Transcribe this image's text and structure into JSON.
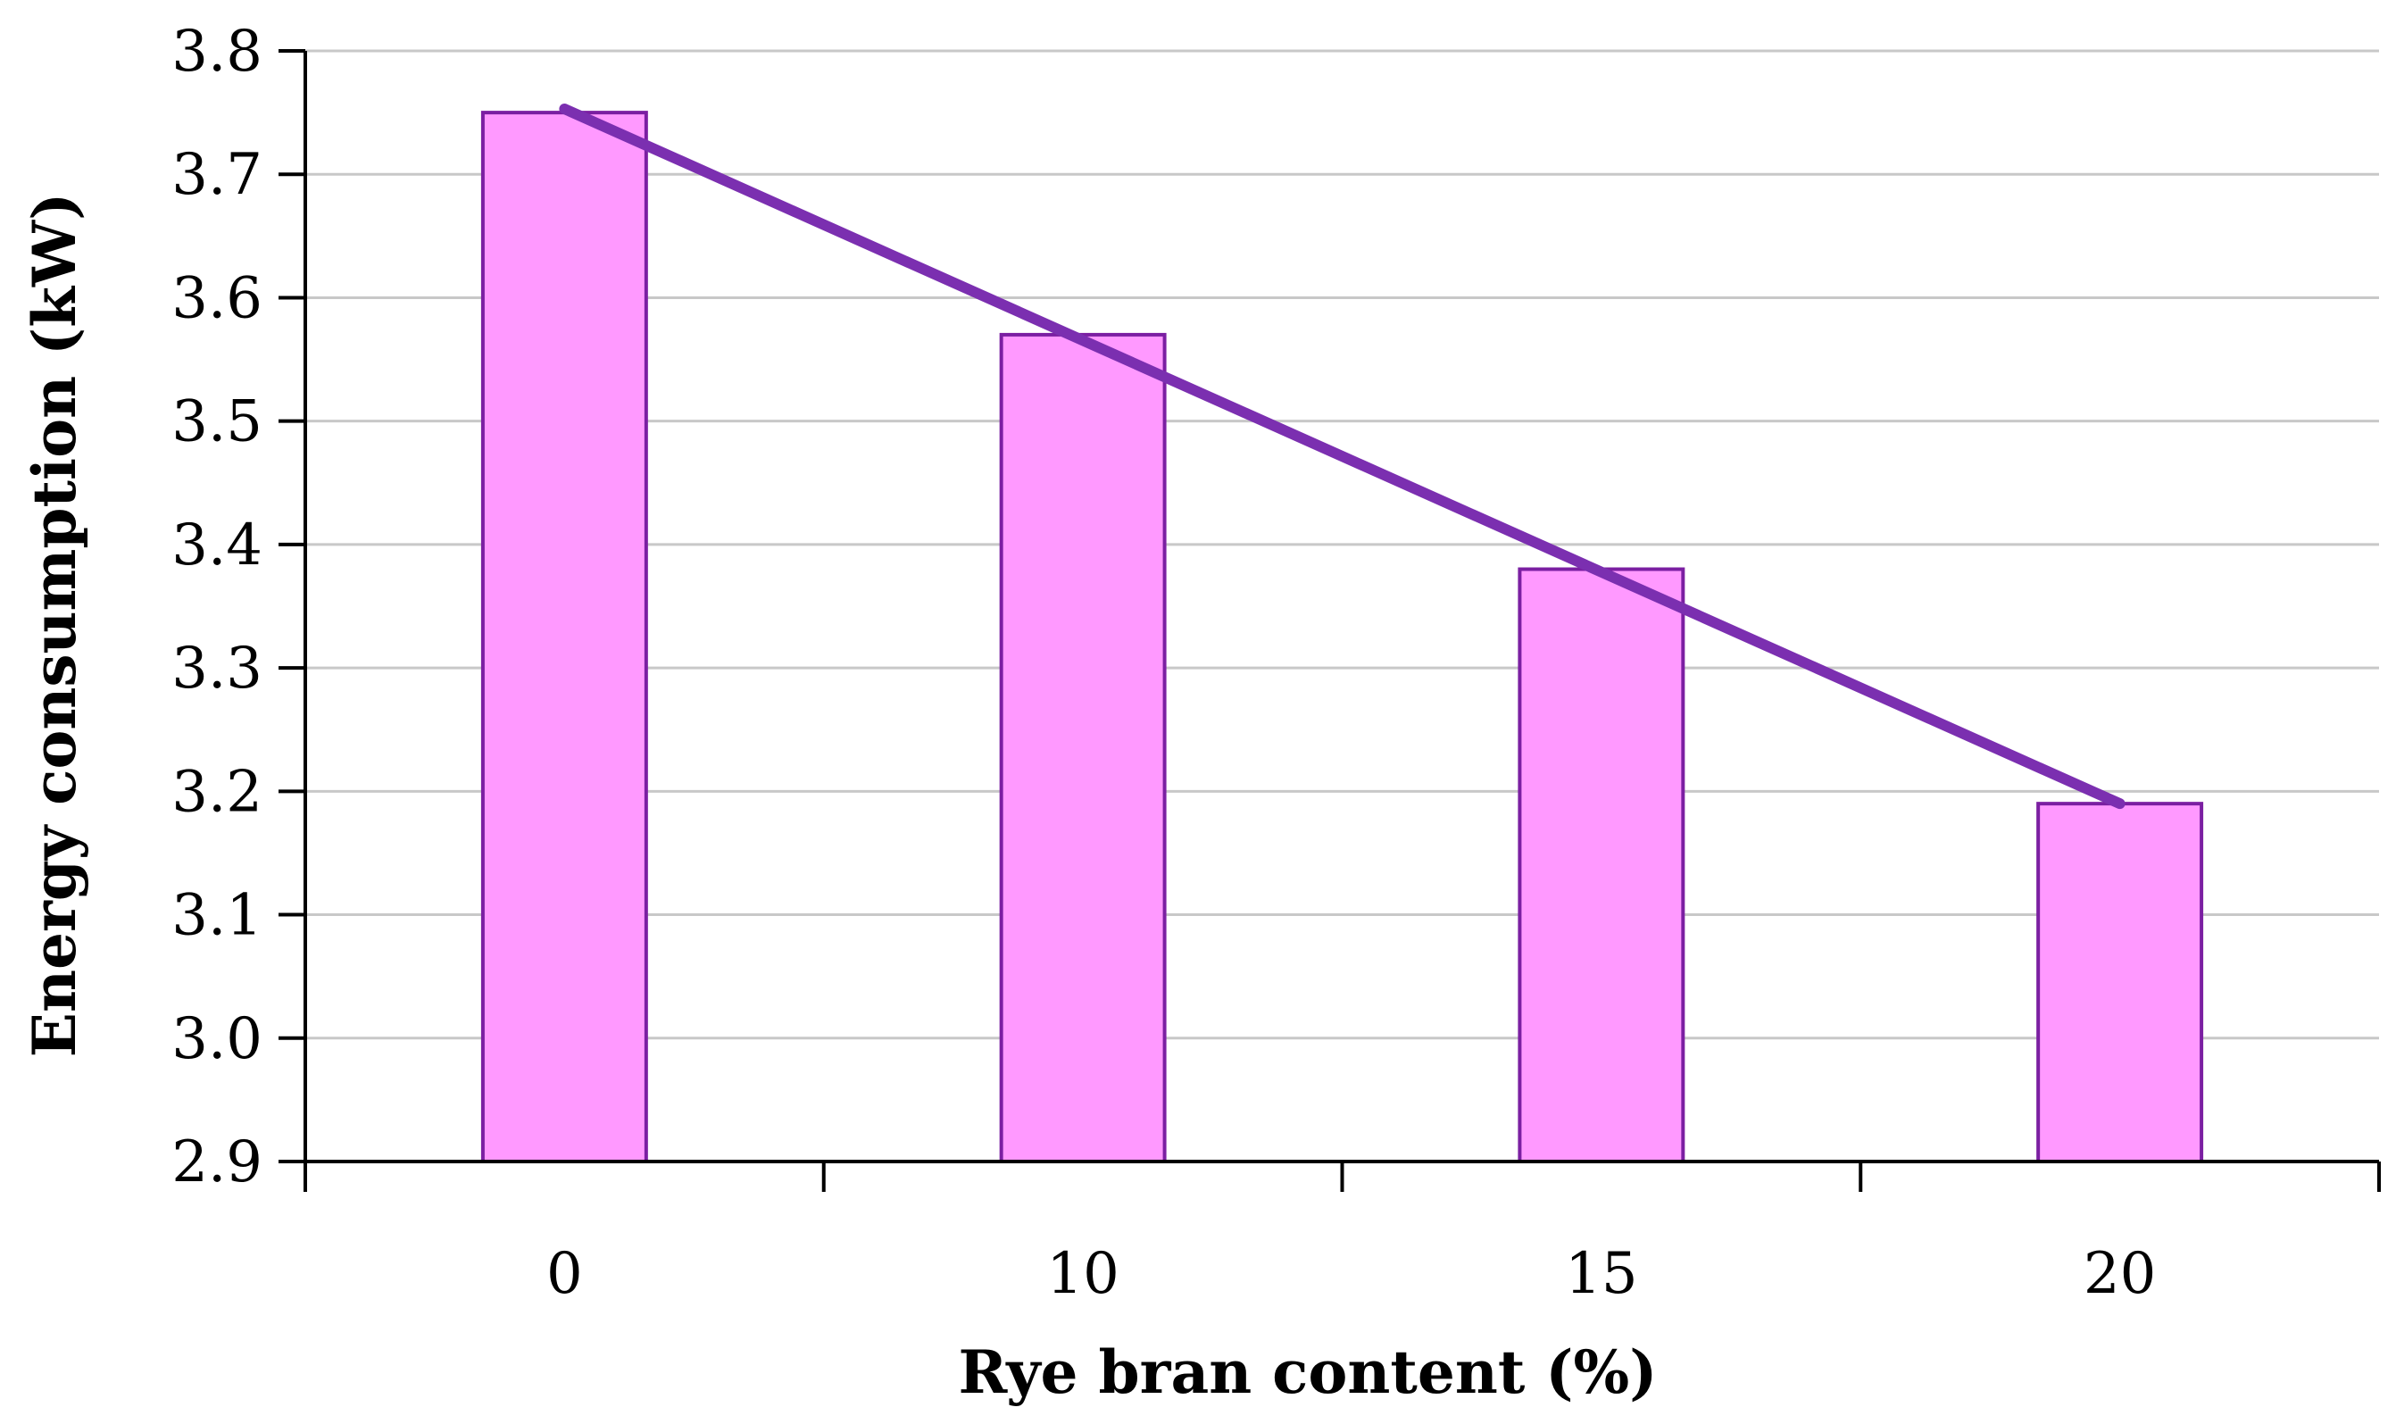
{
  "chart_data": {
    "type": "bar",
    "categories": [
      "0",
      "10",
      "15",
      "20"
    ],
    "series": [
      {
        "values": [
          3.75,
          3.57,
          3.38,
          3.19
        ]
      }
    ],
    "trendline": {
      "type": "linear",
      "start": 3.753,
      "end": 3.19
    },
    "xlabel": "Rye bran content (%)",
    "ylabel": "Energy consumption (kW)",
    "ylim": [
      2.9,
      3.8
    ],
    "yticks": [
      "2.9",
      "3.0",
      "3.1",
      "3.2",
      "3.3",
      "3.4",
      "3.5",
      "3.6",
      "3.7",
      "3.8"
    ],
    "grid": true,
    "legend": "none",
    "colors": {
      "bar_fill": "#ff99ff",
      "bar_stroke": "#7b1fa2",
      "trendline": "#7b2fb0",
      "grid": "#c8c8c8",
      "axis": "#000000"
    }
  }
}
